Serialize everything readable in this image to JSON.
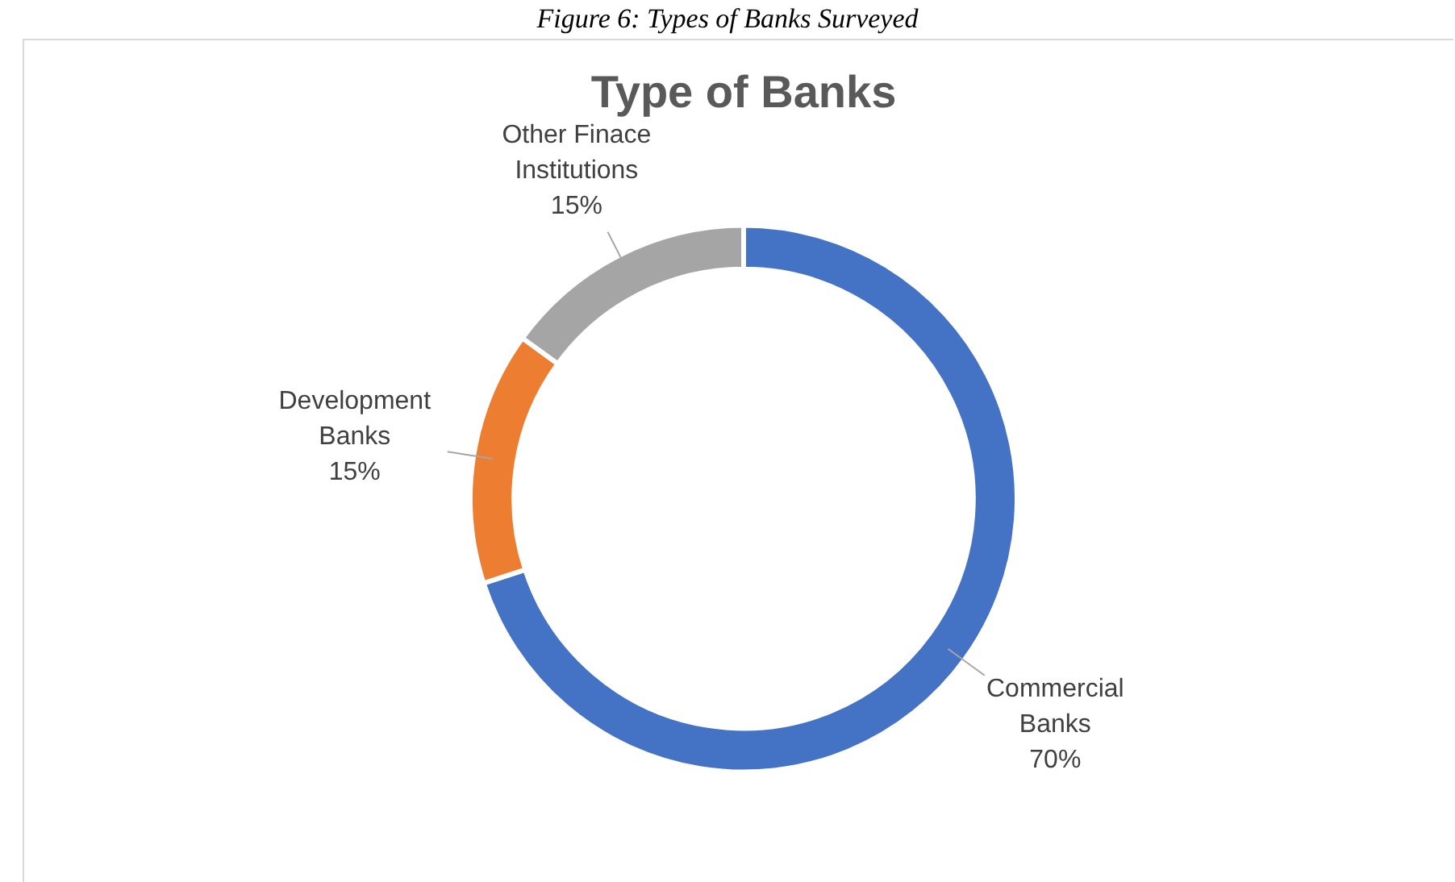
{
  "chart_data": {
    "type": "donut",
    "title": "Type of Banks",
    "annotations": [
      "Figure 6: Types of Banks Surveyed"
    ],
    "categories": [
      "Commercial Banks",
      "Development Banks",
      "Other Finace Institutions"
    ],
    "values": [
      70,
      15,
      15
    ],
    "colors": [
      "#4472c4",
      "#ed7d31",
      "#a5a5a5"
    ],
    "value_labels": [
      "70%",
      "15%",
      "15%"
    ],
    "legend": false
  }
}
